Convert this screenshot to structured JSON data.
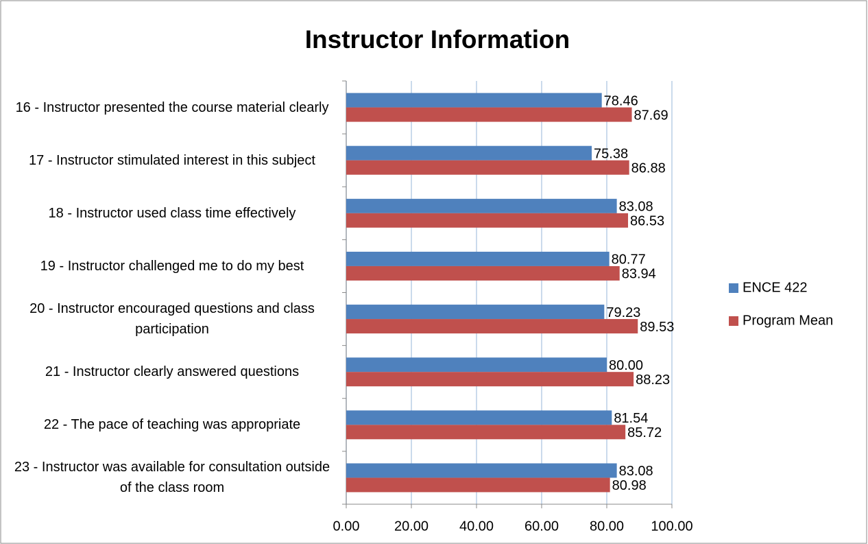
{
  "chart_data": {
    "type": "barh",
    "title": "Instructor Information",
    "categories": [
      "16  - Instructor presented the course material clearly",
      "17 - Instructor stimulated interest in this subject",
      "18 - Instructor used class time effectively",
      "19 - Instructor challenged me to do my best",
      "20 - Instructor encouraged questions and class participation",
      "21 - Instructor clearly answered questions",
      "22 - The pace of teaching was appropriate",
      "23 - Instructor was available for consultation outside of the class room"
    ],
    "series": [
      {
        "name": "ENCE 422",
        "color": "#4f81bd",
        "values": [
          78.46,
          75.38,
          83.08,
          80.77,
          79.23,
          80,
          81.54,
          83.08
        ],
        "value_labels": [
          "78.46",
          "75.38",
          "83.08",
          "80.77",
          "79.23",
          "80.00",
          "81.54",
          "83.08"
        ]
      },
      {
        "name": "Program Mean",
        "color": "#c0504d",
        "values": [
          87.69,
          86.88,
          86.53,
          83.94,
          89.53,
          88.23,
          85.72,
          80.98
        ],
        "value_labels": [
          "87.69",
          "86.88",
          "86.53",
          "83.94",
          "89.53",
          "88.23",
          "85.72",
          "80.98"
        ]
      }
    ],
    "xlim": [
      0,
      100
    ],
    "xticks": [
      {
        "value": 0,
        "label": "0.00"
      },
      {
        "value": 20,
        "label": "20.00"
      },
      {
        "value": 40,
        "label": "40.00"
      },
      {
        "value": 60,
        "label": "60.00"
      },
      {
        "value": 80,
        "label": "80.00"
      },
      {
        "value": 100,
        "label": "100.00"
      }
    ],
    "grid": true,
    "legend": "right"
  }
}
